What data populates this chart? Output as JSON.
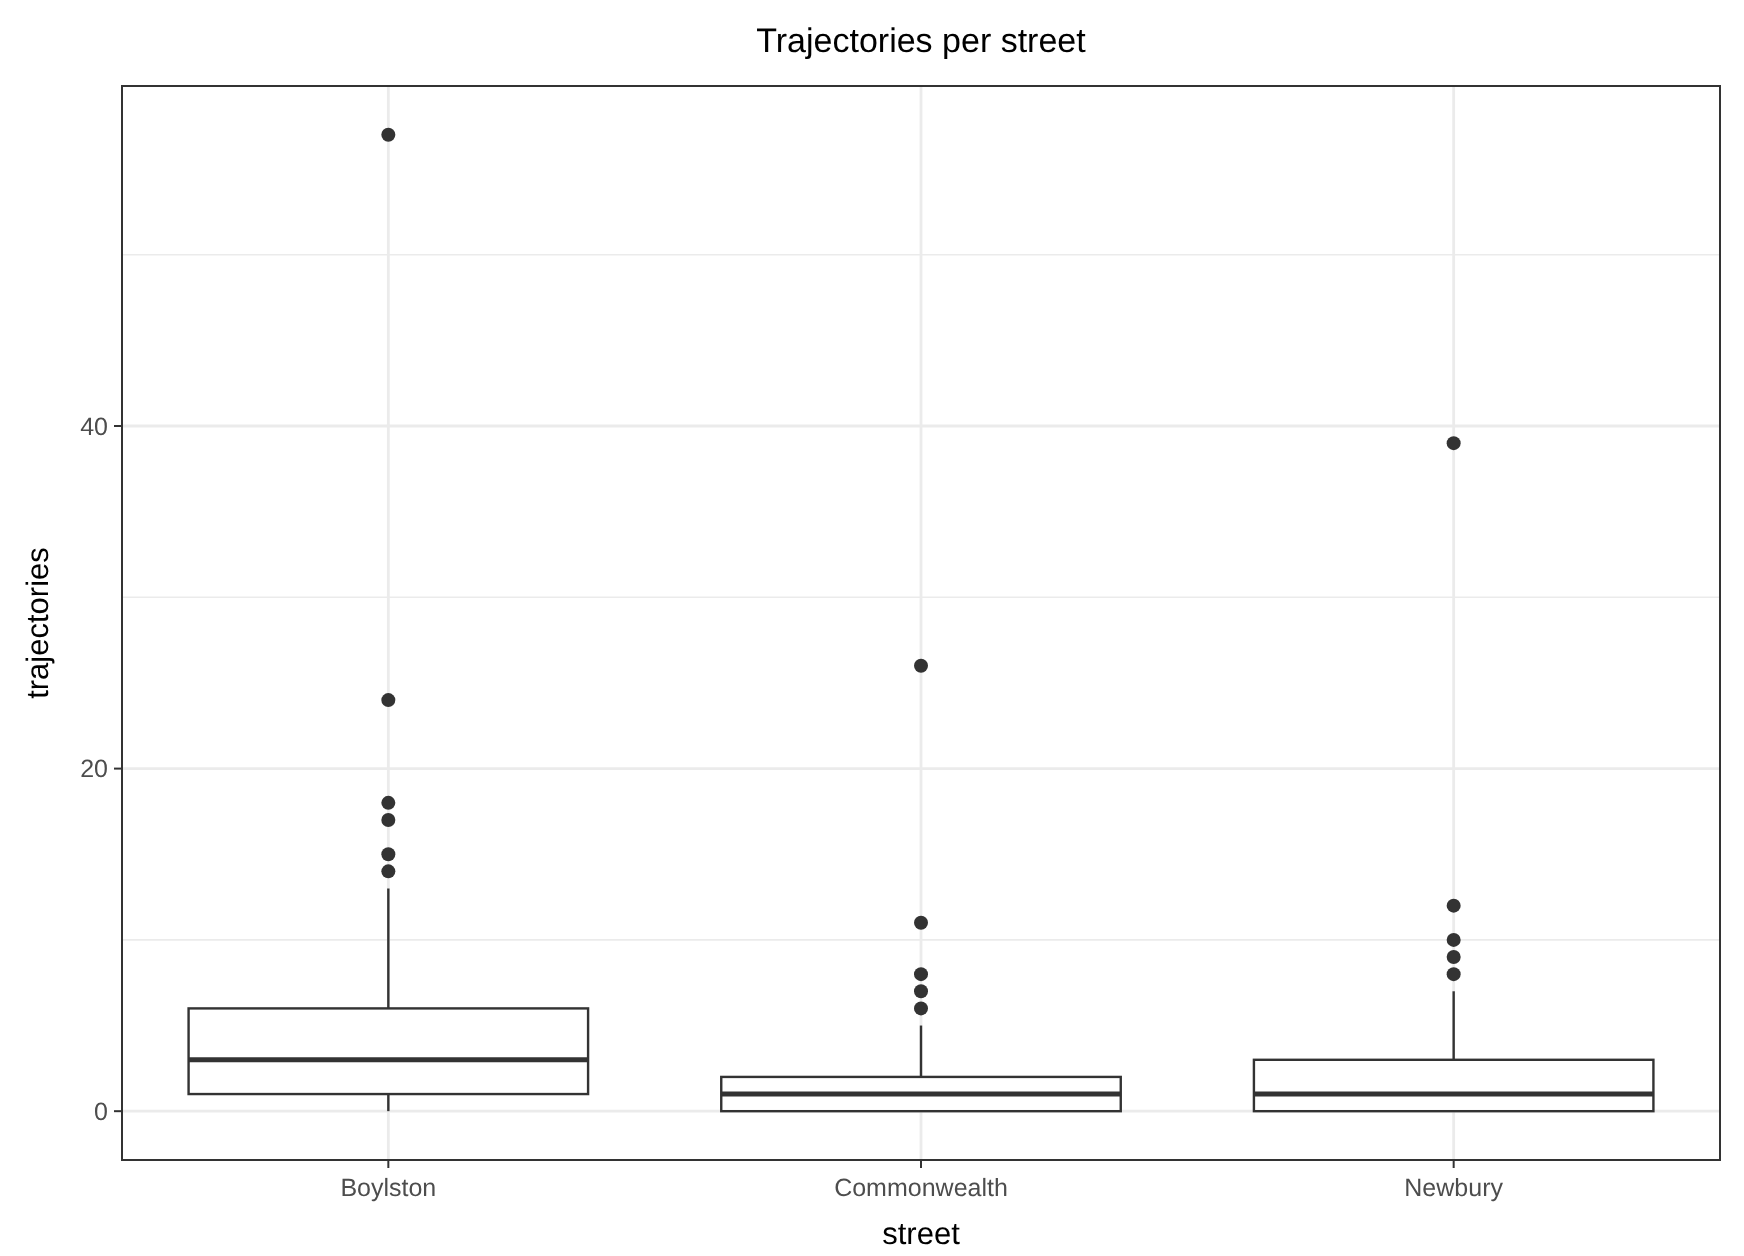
{
  "chart_data": {
    "type": "box",
    "title": "Trajectories per street",
    "xlabel": "street",
    "ylabel": "trajectories",
    "categories": [
      "Boylston",
      "Commonwealth",
      "Newbury"
    ],
    "boxes": [
      {
        "low": 0,
        "q1": 1,
        "median": 3,
        "q3": 6,
        "high": 13,
        "outliers": [
          14,
          15,
          17,
          18,
          24,
          57
        ]
      },
      {
        "low": 0,
        "q1": 0,
        "median": 1,
        "q3": 2,
        "high": 5,
        "outliers": [
          6,
          7,
          8,
          11,
          26
        ]
      },
      {
        "low": 0,
        "q1": 0,
        "median": 1,
        "q3": 3,
        "high": 7,
        "outliers": [
          8,
          9,
          10,
          12,
          39
        ]
      }
    ],
    "color": "#333333",
    "ylim": [
      -2.85,
      59.85
    ],
    "yticks": [
      0,
      {
        "value": 10,
        "label": null
      },
      20,
      {
        "value": 30,
        "label": null
      },
      40,
      {
        "value": 50,
        "label": null
      }
    ],
    "grid": true
  }
}
